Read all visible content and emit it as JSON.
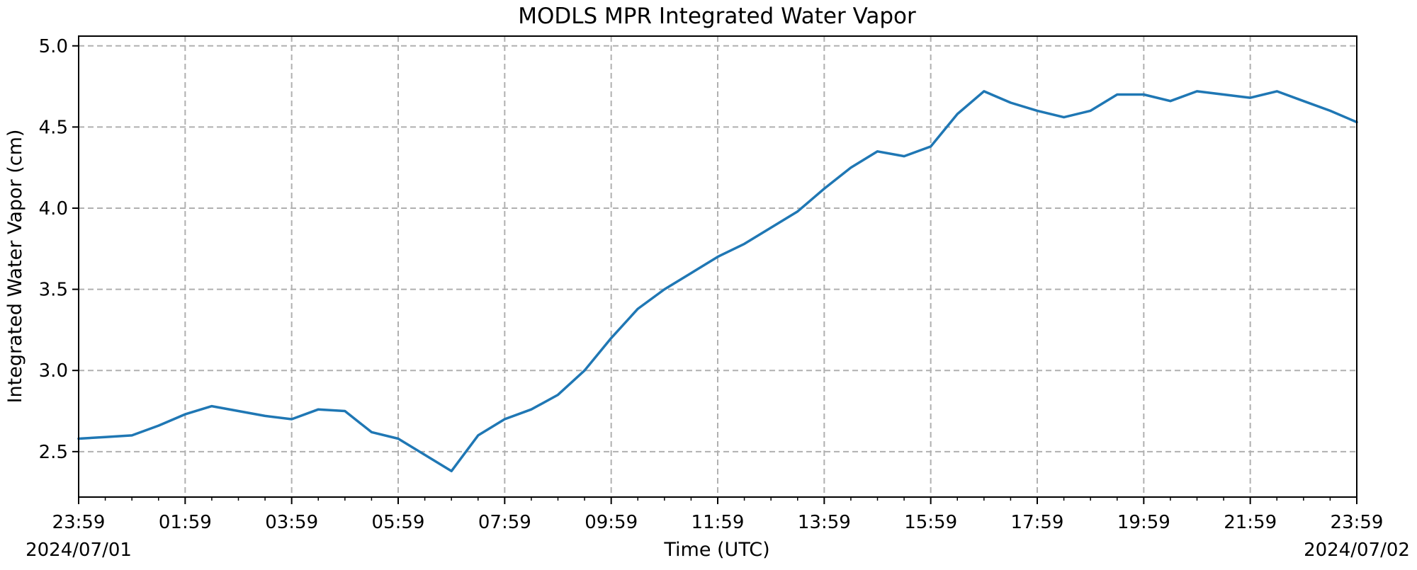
{
  "chart_data": {
    "type": "line",
    "title": "MODLS MPR Integrated Water Vapor",
    "xlabel": "Time (UTC)",
    "ylabel": "Integrated Water Vapor (cm)",
    "x_start_date": "2024/07/01",
    "x_end_date": "2024/07/02",
    "xlim": [
      "2024/07/01 23:59",
      "2024/07/02 23:59"
    ],
    "ylim": [
      2.22,
      5.06
    ],
    "yticks": [
      2.5,
      3.0,
      3.5,
      4.0,
      4.5,
      5.0
    ],
    "ytick_labels": [
      "2.5",
      "3.0",
      "3.5",
      "4.0",
      "4.5",
      "5.0"
    ],
    "xtick_labels": [
      "23:59",
      "01:59",
      "03:59",
      "05:59",
      "07:59",
      "09:59",
      "11:59",
      "13:59",
      "15:59",
      "17:59",
      "19:59",
      "21:59",
      "23:59"
    ],
    "grid": true,
    "series": [
      {
        "color": "#1f77b4",
        "x": [
          "23:59",
          "00:29",
          "00:59",
          "01:29",
          "01:59",
          "02:29",
          "02:59",
          "03:29",
          "03:59",
          "04:29",
          "04:59",
          "05:29",
          "05:59",
          "06:29",
          "06:59",
          "07:29",
          "07:59",
          "08:29",
          "08:59",
          "09:29",
          "09:59",
          "10:29",
          "10:59",
          "11:29",
          "11:59",
          "12:29",
          "12:59",
          "13:29",
          "13:59",
          "14:29",
          "14:59",
          "15:29",
          "15:59",
          "16:29",
          "16:59",
          "17:29",
          "17:59",
          "18:29",
          "18:59",
          "19:29",
          "19:59",
          "20:29",
          "20:59",
          "21:29",
          "21:59",
          "22:29",
          "22:59",
          "23:29",
          "23:59"
        ],
        "values": [
          2.58,
          2.59,
          2.6,
          2.66,
          2.73,
          2.78,
          2.75,
          2.72,
          2.7,
          2.76,
          2.75,
          2.62,
          2.58,
          2.48,
          2.38,
          2.6,
          2.7,
          2.76,
          2.85,
          3.0,
          3.2,
          3.38,
          3.5,
          3.6,
          3.7,
          3.78,
          3.88,
          3.98,
          4.12,
          4.25,
          4.35,
          4.32,
          4.38,
          4.58,
          4.72,
          4.65,
          4.6,
          4.56,
          4.6,
          4.7,
          4.7,
          4.66,
          4.72,
          4.7,
          4.68,
          4.72,
          4.66,
          4.6,
          4.53
        ]
      }
    ]
  }
}
